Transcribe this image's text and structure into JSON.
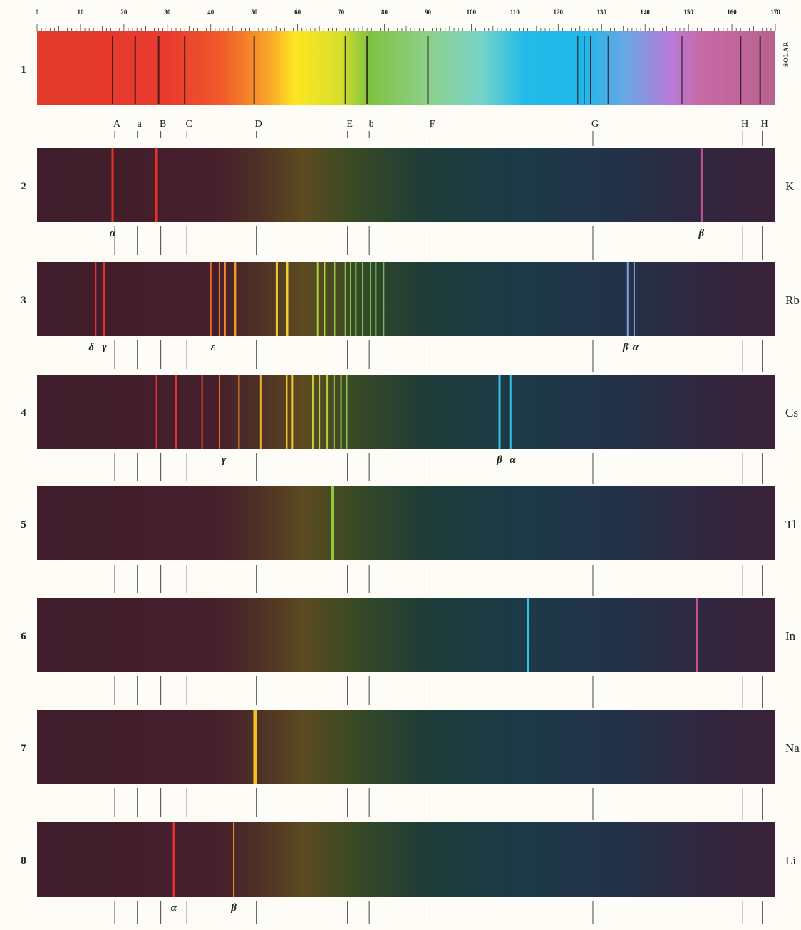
{
  "scale": {
    "ticks": [
      {
        "value": 0,
        "label": "0"
      },
      {
        "value": 10,
        "label": "10"
      },
      {
        "value": 20,
        "label": "20"
      },
      {
        "value": 30,
        "label": "30"
      },
      {
        "value": 40,
        "label": "40"
      },
      {
        "value": 50,
        "label": "50"
      },
      {
        "value": 60,
        "label": "60"
      },
      {
        "value": 70,
        "label": "70"
      },
      {
        "value": 80,
        "label": "80"
      },
      {
        "value": 90,
        "label": "90"
      },
      {
        "value": 100,
        "label": "100"
      },
      {
        "value": 110,
        "label": "110"
      },
      {
        "value": 120,
        "label": "120"
      },
      {
        "value": 130,
        "label": "130"
      },
      {
        "value": 140,
        "label": "140"
      },
      {
        "value": 150,
        "label": "150"
      },
      {
        "value": 160,
        "label": "160"
      },
      {
        "value": 170,
        "label": "170"
      }
    ]
  },
  "solar_side_label": "SOLAR",
  "fraunhofer": [
    {
      "label": "A",
      "pos": 17.4
    },
    {
      "label": "a",
      "pos": 22.6
    },
    {
      "label": "B",
      "pos": 28.0
    },
    {
      "label": "C",
      "pos": 34.0
    },
    {
      "label": "D",
      "pos": 50.0
    },
    {
      "label": "E",
      "pos": 71.0
    },
    {
      "label": "b",
      "pos": 76.0
    },
    {
      "label": "F",
      "pos": 90.0
    },
    {
      "label": "G",
      "pos": 127.5
    },
    {
      "label": "H",
      "pos": 162.0
    },
    {
      "label": "H",
      "pos": 166.5
    }
  ],
  "solar_extra_lines": [
    124.5,
    126.0,
    131.5,
    148.5
  ],
  "spectra": [
    {
      "number": "1",
      "symbol": "",
      "solar": true
    },
    {
      "number": "2",
      "symbol": "K",
      "lines": [
        {
          "pos": 17.4,
          "color": "#e8302a",
          "w": 3
        },
        {
          "pos": 27.5,
          "color": "#e8302a",
          "w": 4
        },
        {
          "pos": 153.0,
          "color": "#c0508e",
          "w": 3
        }
      ],
      "labels": [
        {
          "text": "α",
          "pos": 17.4
        },
        {
          "text": "β",
          "pos": 153.0
        }
      ]
    },
    {
      "number": "3",
      "symbol": "Rb",
      "lines": [
        {
          "pos": 13.5,
          "color": "#e8302a",
          "w": 2
        },
        {
          "pos": 15.5,
          "color": "#e8302a",
          "w": 3
        },
        {
          "pos": 40.0,
          "color": "#ef6a2a",
          "w": 2
        },
        {
          "pos": 42.0,
          "color": "#f07a2a",
          "w": 2
        },
        {
          "pos": 43.3,
          "color": "#f08a2a",
          "w": 2
        },
        {
          "pos": 45.6,
          "color": "#f09a2a",
          "w": 3
        },
        {
          "pos": 55.2,
          "color": "#f0d030",
          "w": 3
        },
        {
          "pos": 57.6,
          "color": "#f0d030",
          "w": 3
        },
        {
          "pos": 64.6,
          "color": "#b0d040",
          "w": 2
        },
        {
          "pos": 66.2,
          "color": "#a8d040",
          "w": 2
        },
        {
          "pos": 68.5,
          "color": "#98c848",
          "w": 2
        },
        {
          "pos": 71.0,
          "color": "#88c850",
          "w": 2
        },
        {
          "pos": 72.2,
          "color": "#88c850",
          "w": 2
        },
        {
          "pos": 73.4,
          "color": "#80c850",
          "w": 2
        },
        {
          "pos": 75.0,
          "color": "#78c858",
          "w": 2
        },
        {
          "pos": 76.8,
          "color": "#78c858",
          "w": 2
        },
        {
          "pos": 78.0,
          "color": "#70c060",
          "w": 2
        },
        {
          "pos": 79.8,
          "color": "#70c060",
          "w": 2
        },
        {
          "pos": 136.0,
          "color": "#7aa0e0",
          "w": 2
        },
        {
          "pos": 137.5,
          "color": "#7aa0e0",
          "w": 2
        }
      ],
      "labels": [
        {
          "text": "δ",
          "pos": 12.5
        },
        {
          "text": "γ",
          "pos": 15.5
        },
        {
          "text": "ε",
          "pos": 40.5
        },
        {
          "text": "β",
          "pos": 135.5
        },
        {
          "text": "α",
          "pos": 137.8
        }
      ]
    },
    {
      "number": "4",
      "symbol": "Cs",
      "lines": [
        {
          "pos": 27.5,
          "color": "#e8302a",
          "w": 2
        },
        {
          "pos": 32.0,
          "color": "#e8302a",
          "w": 2
        },
        {
          "pos": 38.0,
          "color": "#ef4a2a",
          "w": 2
        },
        {
          "pos": 42.0,
          "color": "#ef6a2a",
          "w": 2
        },
        {
          "pos": 46.5,
          "color": "#f0902a",
          "w": 2
        },
        {
          "pos": 51.5,
          "color": "#f0b02a",
          "w": 2
        },
        {
          "pos": 57.5,
          "color": "#f0c830",
          "w": 2
        },
        {
          "pos": 58.8,
          "color": "#f0c830",
          "w": 2
        },
        {
          "pos": 63.5,
          "color": "#c8d040",
          "w": 2
        },
        {
          "pos": 65.0,
          "color": "#c0d040",
          "w": 2
        },
        {
          "pos": 66.8,
          "color": "#b0d040",
          "w": 2
        },
        {
          "pos": 68.4,
          "color": "#a0c848",
          "w": 2
        },
        {
          "pos": 70.0,
          "color": "#90c850",
          "w": 2
        },
        {
          "pos": 71.3,
          "color": "#88c850",
          "w": 2
        },
        {
          "pos": 106.5,
          "color": "#35c0e8",
          "w": 3
        },
        {
          "pos": 109.0,
          "color": "#35c0e8",
          "w": 3
        }
      ],
      "labels": [
        {
          "text": "γ",
          "pos": 43.0
        },
        {
          "text": "β",
          "pos": 106.5
        },
        {
          "text": "α",
          "pos": 109.5
        }
      ]
    },
    {
      "number": "5",
      "symbol": "Tl",
      "lines": [
        {
          "pos": 68.0,
          "color": "#8cc63a",
          "w": 4
        }
      ],
      "labels": []
    },
    {
      "number": "6",
      "symbol": "In",
      "lines": [
        {
          "pos": 113.0,
          "color": "#35c0e8",
          "w": 3
        },
        {
          "pos": 152.0,
          "color": "#c0508e",
          "w": 3
        }
      ],
      "labels": []
    },
    {
      "number": "7",
      "symbol": "Na",
      "lines": [
        {
          "pos": 50.2,
          "color": "#f4c020",
          "w": 5
        }
      ],
      "labels": []
    },
    {
      "number": "8",
      "symbol": "Li",
      "lines": [
        {
          "pos": 31.5,
          "color": "#e8302a",
          "w": 3
        },
        {
          "pos": 45.3,
          "color": "#f0902a",
          "w": 2
        }
      ],
      "labels": [
        {
          "text": "α",
          "pos": 31.5
        },
        {
          "text": "β",
          "pos": 45.3
        }
      ]
    }
  ],
  "colors": {
    "paper": "#fdfcf7",
    "ink": "#222222",
    "dark_band": "#3a1e2c"
  }
}
